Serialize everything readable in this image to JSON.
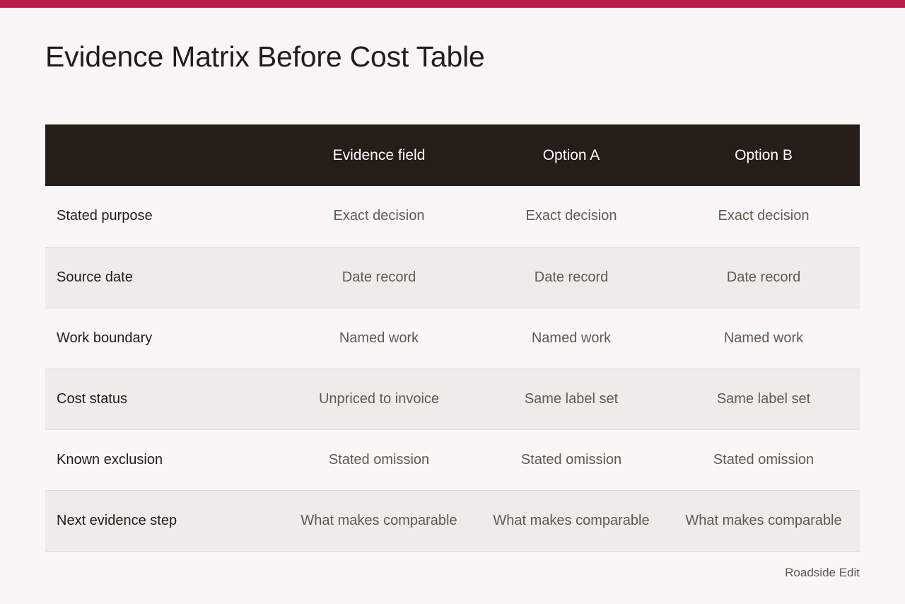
{
  "title": "Evidence Matrix Before Cost Table",
  "table": {
    "headers": [
      "",
      "Evidence field",
      "Option A",
      "Option B"
    ],
    "rows": [
      {
        "label": "Stated purpose",
        "cells": [
          "Exact decision",
          "Exact decision",
          "Exact decision"
        ]
      },
      {
        "label": "Source date",
        "cells": [
          "Date record",
          "Date record",
          "Date record"
        ]
      },
      {
        "label": "Work boundary",
        "cells": [
          "Named work",
          "Named work",
          "Named work"
        ]
      },
      {
        "label": "Cost status",
        "cells": [
          "Unpriced to invoice",
          "Same label set",
          "Same label set"
        ]
      },
      {
        "label": "Known exclusion",
        "cells": [
          "Stated omission",
          "Stated omission",
          "Stated omission"
        ]
      },
      {
        "label": "Next evidence step",
        "cells": [
          "What makes comparable",
          "What makes comparable",
          "What makes comparable"
        ]
      }
    ]
  },
  "footer": {
    "brand": "Roadside Edit"
  },
  "colors": {
    "accent": "#b81e48",
    "header_bg": "#261d19",
    "page_bg": "#f8f7f5",
    "stripe_bg": "#efebe8"
  }
}
